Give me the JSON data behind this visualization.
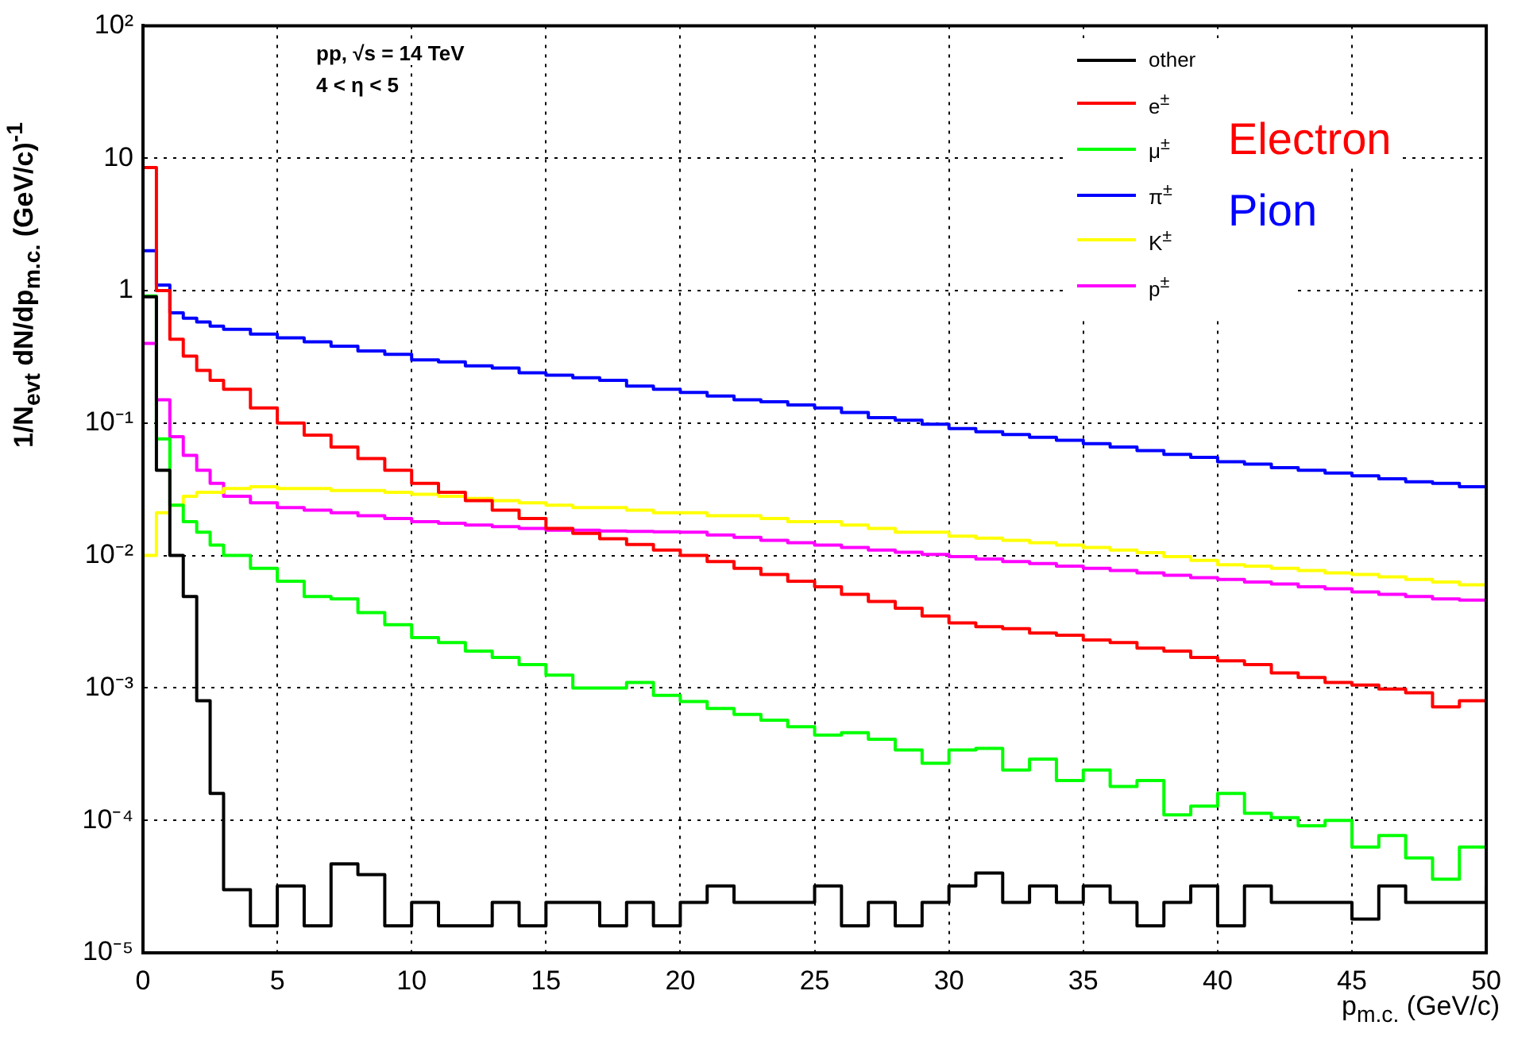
{
  "chart_data": {
    "type": "step",
    "xlabel": "p$_{m.c.}$ (GeV/c)",
    "ylabel": "1/N$_{evt}$ dN/dp$_{m.c.}$ (GeV/c)$^{-1}$",
    "annotations": [
      "pp, √s = 14 TeV",
      "4 < η < 5",
      "Electron",
      "Pion"
    ],
    "x": [
      0,
      0.5,
      1,
      1.5,
      2,
      2.5,
      3,
      4,
      5,
      6,
      7,
      8,
      9,
      10,
      11,
      12,
      13,
      14,
      15,
      16,
      17,
      18,
      19,
      20,
      21,
      22,
      23,
      24,
      25,
      26,
      27,
      28,
      29,
      30,
      31,
      32,
      33,
      34,
      35,
      36,
      37,
      38,
      39,
      40,
      41,
      42,
      43,
      44,
      45,
      46,
      47,
      48,
      49,
      50
    ],
    "series": [
      {
        "name": "other",
        "color": "#000000",
        "values": [
          0.9,
          0.044,
          0.01,
          0.0049,
          0.0008,
          0.00016,
          3e-05,
          1.6e-05,
          3.2e-05,
          1.6e-05,
          4.7e-05,
          3.9e-05,
          1.6e-05,
          2.4e-05,
          1.6e-05,
          1.6e-05,
          2.4e-05,
          1.6e-05,
          2.4e-05,
          2.4e-05,
          1.6e-05,
          2.4e-05,
          1.6e-05,
          2.4e-05,
          3.2e-05,
          2.4e-05,
          2.4e-05,
          2.4e-05,
          3.2e-05,
          1.6e-05,
          2.4e-05,
          1.6e-05,
          2.4e-05,
          3.2e-05,
          4e-05,
          2.4e-05,
          3.2e-05,
          2.4e-05,
          3.2e-05,
          2.4e-05,
          1.6e-05,
          2.4e-05,
          3.2e-05,
          1.6e-05,
          3.2e-05,
          2.4e-05,
          2.4e-05,
          2.4e-05,
          1.8e-05,
          3.2e-05,
          2.4e-05,
          2.4e-05,
          2.4e-05,
          3.2e-05
        ]
      },
      {
        "name": "e$^{±}$",
        "color": "#ff0000",
        "values": [
          8.5,
          1.0,
          0.43,
          0.32,
          0.25,
          0.21,
          0.18,
          0.13,
          0.1,
          0.081,
          0.066,
          0.054,
          0.044,
          0.035,
          0.03,
          0.026,
          0.022,
          0.019,
          0.016,
          0.0147,
          0.0134,
          0.0121,
          0.011,
          0.01,
          0.009,
          0.008,
          0.0072,
          0.0064,
          0.0058,
          0.0051,
          0.0045,
          0.004,
          0.0035,
          0.0031,
          0.0029,
          0.0028,
          0.0026,
          0.0025,
          0.0023,
          0.0022,
          0.002,
          0.0019,
          0.0017,
          0.0016,
          0.0015,
          0.0013,
          0.0012,
          0.0011,
          0.00105,
          0.00098,
          0.00092,
          0.00072,
          0.0008,
          0.00076
        ]
      },
      {
        "name": "μ$^{±}$",
        "color": "#00ff00",
        "values": [
          0.91,
          0.076,
          0.024,
          0.018,
          0.015,
          0.012,
          0.01,
          0.008,
          0.0064,
          0.0049,
          0.0047,
          0.0037,
          0.003,
          0.0024,
          0.0022,
          0.0019,
          0.0017,
          0.0015,
          0.00125,
          0.001,
          0.001,
          0.0011,
          0.00088,
          0.00079,
          0.0007,
          0.00063,
          0.00057,
          0.00051,
          0.00044,
          0.00046,
          0.00041,
          0.00034,
          0.00027,
          0.00034,
          0.00035,
          0.00024,
          0.00029,
          0.0002,
          0.00024,
          0.00018,
          0.0002,
          0.00011,
          0.000128,
          0.00016,
          0.000113,
          0.000105,
          9.1e-05,
          0.0001,
          6.3e-05,
          7.7e-05,
          5.2e-05,
          3.6e-05,
          6.3e-05,
          6.3e-05
        ]
      },
      {
        "name": "π$^{±}$",
        "color": "#0000ff",
        "values": [
          2.0,
          1.1,
          0.68,
          0.62,
          0.58,
          0.54,
          0.51,
          0.47,
          0.44,
          0.41,
          0.38,
          0.35,
          0.33,
          0.3,
          0.29,
          0.27,
          0.26,
          0.24,
          0.23,
          0.22,
          0.21,
          0.19,
          0.18,
          0.17,
          0.16,
          0.15,
          0.145,
          0.137,
          0.13,
          0.12,
          0.11,
          0.105,
          0.098,
          0.091,
          0.086,
          0.082,
          0.078,
          0.074,
          0.07,
          0.066,
          0.062,
          0.058,
          0.055,
          0.051,
          0.049,
          0.046,
          0.044,
          0.042,
          0.04,
          0.038,
          0.036,
          0.035,
          0.033,
          0.032
        ]
      },
      {
        "name": "K$^{±}$",
        "color": "#ffff00",
        "values": [
          0.01,
          0.021,
          0.024,
          0.028,
          0.03,
          0.03,
          0.032,
          0.033,
          0.032,
          0.032,
          0.031,
          0.031,
          0.03,
          0.029,
          0.028,
          0.027,
          0.026,
          0.025,
          0.024,
          0.023,
          0.023,
          0.022,
          0.021,
          0.021,
          0.02,
          0.02,
          0.019,
          0.018,
          0.018,
          0.017,
          0.016,
          0.015,
          0.015,
          0.014,
          0.0135,
          0.013,
          0.0125,
          0.012,
          0.0115,
          0.011,
          0.0105,
          0.0098,
          0.0092,
          0.0085,
          0.0083,
          0.008,
          0.0077,
          0.0074,
          0.0072,
          0.0069,
          0.0066,
          0.0063,
          0.006,
          0.0059
        ]
      },
      {
        "name": "p$^{±}$",
        "color": "#ff00ff",
        "values": [
          0.4,
          0.15,
          0.079,
          0.057,
          0.044,
          0.035,
          0.028,
          0.025,
          0.023,
          0.022,
          0.021,
          0.02,
          0.019,
          0.018,
          0.0175,
          0.017,
          0.0165,
          0.016,
          0.0155,
          0.0155,
          0.0153,
          0.0152,
          0.0151,
          0.015,
          0.0143,
          0.0137,
          0.013,
          0.0125,
          0.012,
          0.0115,
          0.011,
          0.0106,
          0.0102,
          0.0098,
          0.0094,
          0.009,
          0.0087,
          0.0083,
          0.008,
          0.0077,
          0.0074,
          0.0071,
          0.0068,
          0.0066,
          0.0063,
          0.0061,
          0.0058,
          0.0056,
          0.0053,
          0.0051,
          0.0049,
          0.0047,
          0.0046,
          0.0044
        ]
      }
    ],
    "xlim": [
      0,
      50
    ],
    "xticks": [
      0,
      5,
      10,
      15,
      20,
      25,
      30,
      35,
      40,
      45,
      50
    ],
    "ylim": [
      1e-05,
      100
    ],
    "yticks": [
      {
        "value": 100,
        "label": "10²"
      },
      {
        "value": 10,
        "label": "10"
      },
      {
        "value": 1,
        "label": "1"
      },
      {
        "value": 0.1,
        "label": "10⁻¹"
      },
      {
        "value": 0.01,
        "label": "10⁻²"
      },
      {
        "value": 0.001,
        "label": "10⁻³"
      },
      {
        "value": 0.0001,
        "label": "10⁻⁴"
      },
      {
        "value": 1e-05,
        "label": "10⁻⁵"
      }
    ],
    "log": "y",
    "grid": true,
    "legend": "top right",
    "line_style": "solid",
    "marker": "none"
  }
}
